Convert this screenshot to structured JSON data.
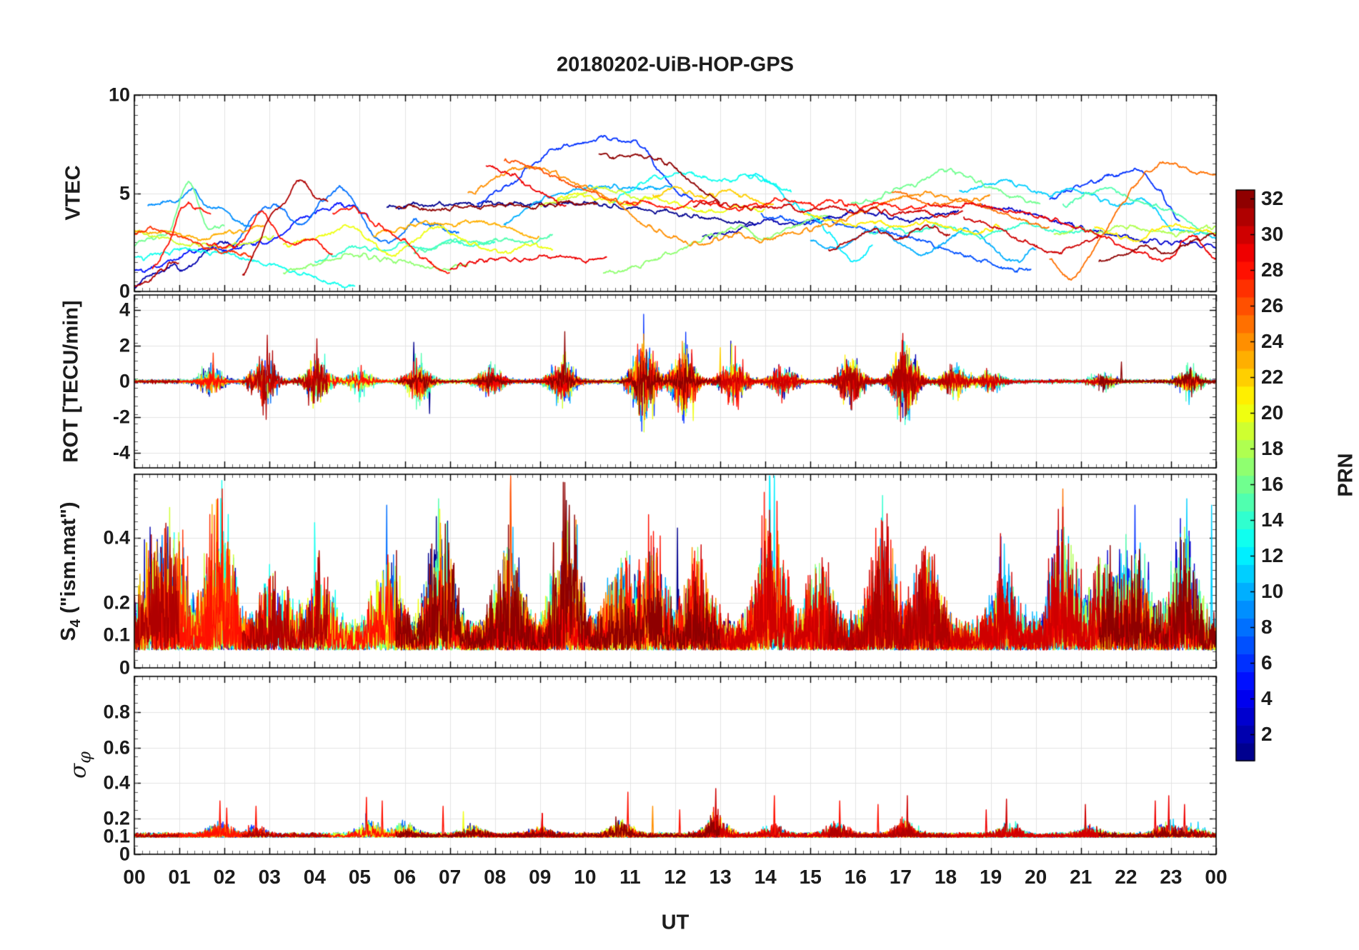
{
  "title": "20180202-UiB-HOP-GPS",
  "chart_data": {
    "type": "line",
    "title": "20180202-UiB-HOP-GPS",
    "xlabel": "UT",
    "x_range_hours": [
      0,
      24
    ],
    "x_ticks": [
      "00",
      "01",
      "02",
      "03",
      "04",
      "05",
      "06",
      "07",
      "08",
      "09",
      "10",
      "11",
      "12",
      "13",
      "14",
      "15",
      "16",
      "17",
      "18",
      "19",
      "20",
      "21",
      "22",
      "23",
      "00"
    ],
    "x_minor_per_hour": 6,
    "grid": true,
    "legend_position": "right-colorbar",
    "colorbar": {
      "label": "PRN",
      "colormap": "jet",
      "n_colors": 32,
      "value_min": 1,
      "value_max": 32,
      "ticks": [
        2,
        4,
        6,
        8,
        10,
        12,
        14,
        16,
        18,
        20,
        22,
        24,
        26,
        28,
        30,
        32
      ]
    },
    "panels": [
      {
        "name": "vtec",
        "ylabel": "VTEC",
        "ylim": [
          0,
          10
        ],
        "yticks": [
          0,
          5,
          10
        ],
        "ytick_labels": [
          "0",
          "5",
          "10"
        ],
        "grid_y": [
          5
        ],
        "minor_step": 0.5
      },
      {
        "name": "rot",
        "ylabel": "ROT [TECU/min]",
        "ylim": [
          -4.85,
          4.85
        ],
        "yticks": [
          -4,
          -2,
          0,
          2,
          4
        ],
        "ytick_labels": [
          "-4",
          "-2",
          "0",
          "2",
          "4"
        ],
        "grid_y": [
          -4,
          -2,
          0,
          2,
          4
        ],
        "minor_step": 0.5
      },
      {
        "name": "s4",
        "ylabel_main": "S",
        "ylabel_sub": "4",
        "ylabel_rest": " (\"ism.mat\")",
        "ylim": [
          0,
          0.595
        ],
        "yticks": [
          0,
          0.1,
          0.2,
          0.4
        ],
        "ytick_labels": [
          "0",
          "0.1",
          "0.2",
          "0.4"
        ],
        "grid_y": [
          0.1,
          0.2,
          0.4
        ],
        "minor_step": 0.025
      },
      {
        "name": "sigma_phi",
        "ylabel_sigma": "σ",
        "ylabel_sub": "φ",
        "ylim": [
          0,
          1
        ],
        "yticks": [
          0,
          0.1,
          0.2,
          0.4,
          0.6,
          0.8
        ],
        "ytick_labels": [
          "0",
          "0.1",
          "0.2",
          "0.4",
          "0.6",
          "0.8"
        ],
        "grid_y": [
          0.1,
          0.2,
          0.4,
          0.6,
          0.8
        ],
        "minor_step": 0.05
      }
    ],
    "noise_seed": 3,
    "passes": [
      [
        1,
        5.6,
        13.8,
        [
          4.3,
          4.4,
          4.45,
          4.4,
          4.5,
          4.45,
          4.4,
          4.45,
          4.35,
          4.2,
          4.0,
          3.8,
          3.6,
          3.4
        ]
      ],
      [
        2,
        0.0,
        2.3,
        [
          0.3,
          0.7,
          1.0,
          1.3,
          1.1,
          1.6,
          2.2,
          2.5,
          2.3
        ]
      ],
      [
        2,
        12.6,
        18.3,
        [
          2.7,
          3.0,
          3.3,
          3.6,
          3.4,
          3.7,
          3.9,
          4.1,
          3.8,
          3.6,
          3.9,
          4.2
        ]
      ],
      [
        3,
        18.8,
        24.0,
        [
          4.4,
          4.2,
          3.9,
          3.6,
          3.3,
          3.0,
          2.8,
          2.6,
          2.5,
          2.4,
          2.3
        ]
      ],
      [
        5,
        0.0,
        5.2,
        [
          1.0,
          1.3,
          1.8,
          2.2,
          2.1,
          2.4,
          2.6,
          3.6,
          4.1,
          4.4,
          3.9
        ]
      ],
      [
        6,
        7.6,
        12.4,
        [
          4.5,
          5.0,
          5.6,
          6.4,
          7.1,
          7.5,
          7.65,
          7.8,
          7.7,
          7.5,
          6.3,
          5.2,
          4.6
        ]
      ],
      [
        6,
        20.3,
        23.2,
        [
          4.6,
          5.2,
          5.6,
          5.9,
          6.2,
          5.2,
          3.6
        ]
      ],
      [
        7,
        13.9,
        19.9,
        [
          3.9,
          3.7,
          3.5,
          3.6,
          3.3,
          3.1,
          2.9,
          2.6,
          2.2,
          1.9,
          1.5,
          1.2,
          1.0
        ]
      ],
      [
        8,
        2.2,
        7.2,
        [
          2.3,
          3.9,
          4.3,
          3.4,
          4.7,
          5.2,
          3.2,
          2.5,
          3.6,
          3.3,
          3.0
        ]
      ],
      [
        9,
        0.3,
        2.6,
        [
          4.3,
          4.5,
          4.6,
          5.2,
          4.4,
          4.1,
          3.6,
          3.2
        ]
      ],
      [
        10,
        8.2,
        12.0,
        [
          3.4,
          4.3,
          4.9,
          5.2,
          5.35,
          5.3,
          5.35,
          5.3
        ]
      ],
      [
        10,
        15.0,
        20.0,
        [
          2.6,
          2.2,
          2.7,
          3.2,
          2.4,
          1.9,
          2.6,
          3.1,
          2.4,
          1.5,
          2.2
        ]
      ],
      [
        11,
        18.3,
        24.0,
        [
          5.0,
          5.3,
          5.6,
          5.2,
          4.9,
          5.2,
          4.7,
          4.4,
          4.6,
          3.3,
          3.0,
          2.8
        ]
      ],
      [
        12,
        13.6,
        16.4,
        [
          5.9,
          5.6,
          4.6,
          3.9,
          2.8,
          1.6,
          2.3
        ]
      ],
      [
        13,
        0.0,
        4.9,
        [
          1.6,
          1.9,
          2.1,
          2.0,
          1.8,
          1.5,
          1.2,
          0.8,
          0.4,
          0.25
        ]
      ],
      [
        13,
        10.6,
        14.6,
        [
          4.6,
          5.3,
          5.8,
          6.0,
          5.9,
          5.6,
          5.9,
          5.5,
          5.0
        ]
      ],
      [
        14,
        4.0,
        8.0,
        [
          1.6,
          1.9,
          2.3,
          2.1,
          2.4,
          2.2,
          2.5,
          2.3,
          2.6
        ]
      ],
      [
        14,
        16.3,
        21.3,
        [
          2.9,
          3.3,
          3.0,
          3.4,
          3.1,
          2.8,
          3.2,
          3.4,
          3.1,
          2.9,
          3.2
        ]
      ],
      [
        15,
        6.2,
        9.3,
        [
          2.0,
          2.3,
          2.6,
          2.4,
          2.7,
          2.5,
          2.8
        ]
      ],
      [
        15,
        20.6,
        24.0,
        [
          4.4,
          4.9,
          5.3,
          4.8,
          4.4,
          4.1,
          3.3,
          2.9
        ]
      ],
      [
        16,
        0.0,
        2.0,
        [
          2.4,
          2.7,
          3.1,
          5.6,
          3.3,
          3.5
        ]
      ],
      [
        16,
        15.9,
        20.1,
        [
          4.4,
          4.7,
          5.2,
          5.6,
          6.2,
          5.8,
          5.2,
          4.8,
          4.4
        ]
      ],
      [
        17,
        3.3,
        7.4,
        [
          1.0,
          1.3,
          1.6,
          1.9,
          1.7,
          1.5,
          1.3,
          1.2,
          1.4
        ]
      ],
      [
        17,
        10.4,
        15.4,
        [
          0.9,
          1.1,
          1.5,
          2.0,
          2.4,
          2.9,
          3.3,
          2.7,
          3.1,
          3.5,
          3.9
        ]
      ],
      [
        18,
        20.4,
        24.0,
        [
          2.9,
          3.2,
          3.0,
          3.3,
          3.1,
          2.9,
          3.1,
          3.3
        ]
      ],
      [
        19,
        0.0,
        3.1,
        [
          3.0,
          2.8,
          2.5,
          2.4,
          2.3,
          2.5,
          2.8
        ]
      ],
      [
        19,
        9.0,
        11.5,
        [
          4.4,
          4.8,
          5.3,
          5.0,
          4.6
        ]
      ],
      [
        20,
        3.3,
        9.3,
        [
          2.3,
          2.6,
          3.0,
          3.3,
          2.4,
          1.9,
          2.8,
          3.2,
          2.6,
          2.2,
          2.0,
          2.4,
          2.2
        ]
      ],
      [
        20,
        9.3,
        14.0,
        [
          4.6,
          5.0,
          4.7,
          4.4,
          4.7,
          4.5,
          4.2,
          4.0,
          4.3,
          4.1
        ]
      ],
      [
        21,
        14.8,
        19.2,
        [
          4.0,
          3.7,
          3.4,
          3.6,
          3.3,
          3.5,
          3.2,
          3.0,
          3.3
        ]
      ],
      [
        21,
        21.3,
        24.0,
        [
          3.4,
          2.9,
          2.6,
          3.1,
          3.4,
          3.2,
          2.9
        ]
      ],
      [
        22,
        11.5,
        14.2,
        [
          4.9,
          5.2,
          4.8,
          5.1,
          4.7,
          4.4
        ]
      ],
      [
        23,
        0.0,
        2.9,
        [
          3.1,
          3.0,
          2.9,
          2.7,
          2.9,
          3.1,
          3.3
        ]
      ],
      [
        23,
        5.3,
        9.0,
        [
          2.9,
          3.2,
          3.5,
          3.3,
          3.6,
          3.4,
          3.1,
          2.7
        ]
      ],
      [
        24,
        7.4,
        12.3,
        [
          4.9,
          5.6,
          6.2,
          6.4,
          6.0,
          5.5,
          5.0,
          4.4,
          3.4,
          2.9,
          2.4
        ]
      ],
      [
        24,
        12.3,
        19.0,
        [
          2.4,
          2.6,
          2.9,
          2.6,
          2.8,
          3.1,
          3.4,
          3.8,
          4.3,
          4.7,
          5.0,
          4.8,
          4.6,
          4.9
        ]
      ],
      [
        25,
        16.8,
        20.3,
        [
          5.0,
          4.8,
          4.4,
          4.7,
          4.3,
          4.0,
          3.6,
          3.3
        ]
      ],
      [
        25,
        20.3,
        24.0,
        [
          1.6,
          0.7,
          1.9,
          3.6,
          5.2,
          6.3,
          6.5,
          6.1,
          5.9
        ]
      ],
      [
        26,
        8.2,
        11.2,
        [
          6.6,
          6.4,
          6.0,
          5.5,
          5.0,
          4.6,
          4.4
        ]
      ],
      [
        27,
        0.0,
        2.6,
        [
          2.9,
          3.2,
          2.7,
          2.3,
          2.0,
          1.8
        ]
      ],
      [
        28,
        0.4,
        1.7,
        [
          1.1,
          2.3,
          4.2,
          4.3,
          3.9
        ]
      ],
      [
        28,
        1.6,
        4.4,
        [
          2.5,
          2.3,
          2.6,
          4.1,
          2.9,
          2.4,
          2.6,
          1.9
        ]
      ],
      [
        28,
        4.4,
        7.0,
        [
          4.0,
          4.2,
          3.3,
          2.6,
          1.5,
          0.9
        ]
      ],
      [
        29,
        7.0,
        10.5,
        [
          1.2,
          1.5,
          1.7,
          1.6,
          1.8,
          1.7,
          1.6,
          1.8
        ]
      ],
      [
        29,
        7.8,
        9.6,
        [
          6.4,
          6.2,
          5.9,
          5.5,
          5.0,
          4.6,
          4.4
        ]
      ],
      [
        28,
        10.9,
        17.6,
        [
          4.4,
          4.5,
          4.3,
          4.6,
          4.4,
          4.2,
          4.5,
          4.7,
          4.4,
          4.6,
          4.3,
          4.5,
          4.2,
          4.4
        ]
      ],
      [
        29,
        17.6,
        24.0,
        [
          4.5,
          4.3,
          4.4,
          4.1,
          3.9,
          3.7,
          3.4,
          3.0,
          2.4,
          1.9,
          1.6,
          2.9,
          1.6
        ]
      ],
      [
        31,
        0.0,
        1.0,
        [
          0.2,
          0.5,
          0.9,
          1.3,
          1.4
        ]
      ],
      [
        31,
        2.4,
        4.3,
        [
          0.9,
          2.3,
          3.9,
          4.6,
          5.6,
          4.9,
          4.5
        ]
      ],
      [
        32,
        5.8,
        10.3,
        [
          4.3,
          4.3,
          4.2,
          4.35,
          4.3,
          4.4,
          4.3,
          4.45,
          4.5,
          4.4
        ]
      ],
      [
        32,
        10.3,
        13.0,
        [
          7.0,
          6.9,
          7.0,
          6.8,
          6.5,
          5.9,
          5.0,
          4.6
        ]
      ],
      [
        30,
        12.4,
        18.4,
        [
          4.4,
          4.5,
          4.3,
          4.2,
          4.4,
          4.1,
          4.3,
          4.0,
          4.2,
          3.9,
          4.1,
          3.8,
          4.0
        ]
      ],
      [
        30,
        18.4,
        21.4,
        [
          3.8,
          3.4,
          2.9,
          2.4,
          2.0,
          2.3,
          2.7
        ]
      ],
      [
        31,
        15.4,
        18.1,
        [
          2.2,
          2.6,
          3.1,
          2.7,
          3.3,
          2.9
        ]
      ],
      [
        32,
        21.4,
        24.0,
        [
          1.5,
          1.8,
          2.3,
          2.0,
          2.5,
          2.9
        ]
      ]
    ],
    "rot_bursts": [
      [
        1.7,
        0.55
      ],
      [
        2.9,
        1.2
      ],
      [
        4.05,
        1.0
      ],
      [
        5.0,
        0.45
      ],
      [
        6.3,
        0.75
      ],
      [
        7.9,
        0.55
      ],
      [
        9.5,
        0.85
      ],
      [
        11.3,
        1.6
      ],
      [
        12.2,
        1.4
      ],
      [
        13.3,
        1.0
      ],
      [
        14.4,
        0.7
      ],
      [
        15.9,
        0.85
      ],
      [
        17.1,
        1.3
      ],
      [
        18.2,
        0.55
      ],
      [
        19.0,
        0.35
      ],
      [
        21.5,
        0.3
      ],
      [
        23.4,
        0.55
      ]
    ],
    "rot_spikes": [
      [
        2.95,
        31,
        2.6
      ],
      [
        4.05,
        31,
        2.4
      ],
      [
        9.55,
        32,
        2.8
      ],
      [
        6.2,
        1,
        2.2
      ],
      [
        6.55,
        1,
        -1.8
      ],
      [
        11.3,
        20,
        2.3
      ],
      [
        11.5,
        20,
        -2.1
      ],
      [
        12.2,
        17,
        2.15
      ],
      [
        12.4,
        20,
        -2.2
      ],
      [
        13.0,
        22,
        1.9
      ],
      [
        13.25,
        20,
        2.1
      ],
      [
        15.9,
        10,
        -1.6
      ],
      [
        17.05,
        30,
        2.7
      ],
      [
        1.75,
        27,
        1.6
      ],
      [
        21.9,
        32,
        1.1
      ],
      [
        23.4,
        11,
        -1.3
      ]
    ],
    "s4_bursts": [
      [
        0.4,
        0.3
      ],
      [
        0.9,
        0.35
      ],
      [
        1.9,
        0.52
      ],
      [
        3.1,
        0.28
      ],
      [
        4.1,
        0.3
      ],
      [
        5.6,
        0.42
      ],
      [
        6.8,
        0.48
      ],
      [
        8.3,
        0.38
      ],
      [
        9.6,
        0.52
      ],
      [
        10.8,
        0.3
      ],
      [
        11.5,
        0.38
      ],
      [
        12.5,
        0.3
      ],
      [
        14.1,
        0.55
      ],
      [
        15.2,
        0.3
      ],
      [
        16.6,
        0.42
      ],
      [
        17.6,
        0.35
      ],
      [
        19.3,
        0.28
      ],
      [
        20.6,
        0.45
      ],
      [
        21.5,
        0.3
      ],
      [
        22.2,
        0.4
      ],
      [
        23.3,
        0.45
      ]
    ],
    "s4_spikes": [
      [
        1.85,
        28,
        0.52
      ],
      [
        1.95,
        28,
        0.55
      ],
      [
        9.55,
        32,
        0.57
      ],
      [
        9.65,
        32,
        0.5
      ],
      [
        14.1,
        12,
        0.95
      ],
      [
        14.2,
        12,
        0.6
      ],
      [
        16.6,
        14,
        0.53
      ],
      [
        20.6,
        25,
        0.55
      ],
      [
        22.2,
        6,
        0.5
      ],
      [
        23.35,
        11,
        0.52
      ],
      [
        5.6,
        8,
        0.5
      ],
      [
        6.75,
        15,
        0.52
      ],
      [
        8.35,
        26,
        0.9
      ],
      [
        12.05,
        1,
        0.43
      ],
      [
        23.9,
        11,
        0.5
      ]
    ],
    "sigma_bursts": [
      [
        1.9,
        0.12
      ],
      [
        2.7,
        0.08
      ],
      [
        5.2,
        0.16
      ],
      [
        6.0,
        0.1
      ],
      [
        7.5,
        0.08
      ],
      [
        9.0,
        0.07
      ],
      [
        10.8,
        0.14
      ],
      [
        12.9,
        0.18
      ],
      [
        14.2,
        0.08
      ],
      [
        15.6,
        0.1
      ],
      [
        17.1,
        0.14
      ],
      [
        19.4,
        0.1
      ],
      [
        21.2,
        0.08
      ],
      [
        22.9,
        0.12
      ],
      [
        23.5,
        0.08
      ]
    ],
    "sigma_spikes": [
      [
        1.9,
        28,
        0.3
      ],
      [
        2.05,
        28,
        0.26
      ],
      [
        2.7,
        28,
        0.27
      ],
      [
        5.15,
        28,
        0.32
      ],
      [
        5.5,
        28,
        0.3
      ],
      [
        6.85,
        28,
        0.27
      ],
      [
        7.3,
        20,
        0.24
      ],
      [
        9.05,
        29,
        0.23
      ],
      [
        10.95,
        28,
        0.35
      ],
      [
        11.5,
        24,
        0.27
      ],
      [
        12.1,
        28,
        0.25
      ],
      [
        12.9,
        30,
        0.37
      ],
      [
        14.2,
        28,
        0.33
      ],
      [
        15.65,
        28,
        0.3
      ],
      [
        16.5,
        28,
        0.28
      ],
      [
        17.15,
        30,
        0.33
      ],
      [
        18.9,
        29,
        0.25
      ],
      [
        19.35,
        30,
        0.31
      ],
      [
        21.1,
        30,
        0.28
      ],
      [
        22.65,
        29,
        0.3
      ],
      [
        22.95,
        29,
        0.33
      ],
      [
        23.3,
        29,
        0.28
      ]
    ]
  }
}
